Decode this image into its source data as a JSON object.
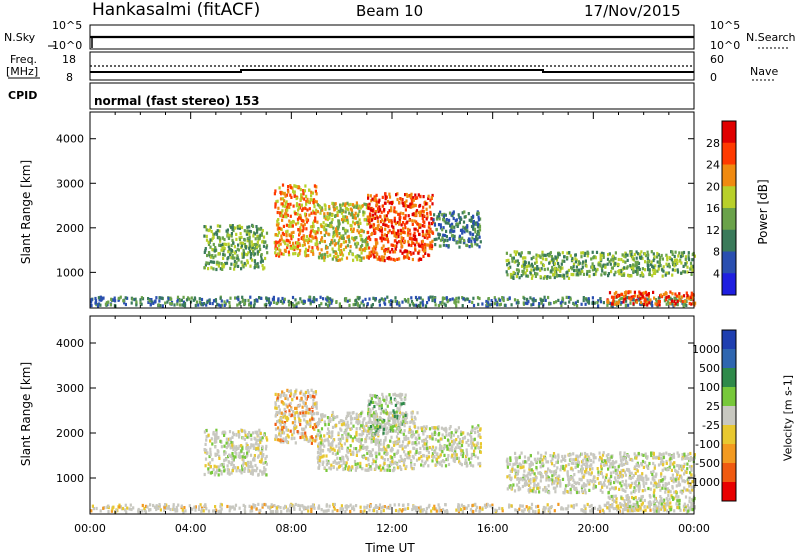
{
  "header": {
    "station": "Hankasalmi (fitACF)",
    "beam": "Beam 10",
    "date": "17/Nov/2015"
  },
  "params": {
    "nsky_label": "N.Sky",
    "nsearch_label": "N.Search",
    "nsky_top": "10^5",
    "nsky_bottom": "10^0",
    "nsearch_top": "10^5",
    "nsearch_bottom": "10^0",
    "freq_label": "Freq.",
    "freq_unit": "[MHz]",
    "freq_top": "18",
    "freq_bottom": "8",
    "nave_label": "Nave",
    "nave_top": "60",
    "nave_bottom": "0",
    "cpid_label": "CPID",
    "cpid_value": "normal (fast stereo) 153"
  },
  "colors": {
    "power": [
      "#1f1fe0",
      "#2a4fb0",
      "#3a7a5a",
      "#6aa24a",
      "#b8d02a",
      "#f08a10",
      "#ff3a00",
      "#e00000"
    ],
    "velocity": [
      "#1f3fb0",
      "#2f66b0",
      "#2f8a4a",
      "#77c83a",
      "#c8c8c0",
      "#e8c830",
      "#f39a20",
      "#f05a10",
      "#e80000"
    ],
    "scatter_gray": "#c8c8c0"
  },
  "chart_data": [
    {
      "type": "heatmap",
      "panel": "power",
      "ylabel": "Slant Range [km]",
      "ylim": [
        200,
        4600
      ],
      "y_ticks": [
        "1000",
        "2000",
        "3000",
        "4000"
      ],
      "xlim": [
        0,
        24
      ],
      "colorbar_label": "Power [dB]",
      "colorbar_ticks": [
        "4",
        "8",
        "12",
        "16",
        "20",
        "24",
        "28"
      ],
      "regions": [
        {
          "t0": 0.0,
          "t1": 24.0,
          "r0": 280,
          "r1": 480,
          "level": 2
        },
        {
          "t0": 4.5,
          "t1": 7.0,
          "r0": 1100,
          "r1": 2100,
          "level": 3
        },
        {
          "t0": 7.3,
          "t1": 9.0,
          "r0": 1400,
          "r1": 3000,
          "level": 5
        },
        {
          "t0": 9.0,
          "t1": 11.0,
          "r0": 1300,
          "r1": 2600,
          "level": 4
        },
        {
          "t0": 11.0,
          "t1": 13.6,
          "r0": 1300,
          "r1": 2800,
          "level": 6
        },
        {
          "t0": 13.6,
          "t1": 15.5,
          "r0": 1600,
          "r1": 2400,
          "level": 2
        },
        {
          "t0": 16.5,
          "t1": 19.0,
          "r0": 900,
          "r1": 1500,
          "level": 3
        },
        {
          "t0": 19.0,
          "t1": 24.0,
          "r0": 950,
          "r1": 1500,
          "level": 3
        },
        {
          "t0": 20.5,
          "t1": 24.0,
          "r0": 300,
          "r1": 600,
          "level": 6
        }
      ]
    },
    {
      "type": "heatmap",
      "panel": "velocity",
      "ylabel": "Slant Range [km]",
      "ylim": [
        200,
        4600
      ],
      "y_ticks": [
        "1000",
        "2000",
        "3000",
        "4000"
      ],
      "xlim": [
        0,
        24
      ],
      "xlabel": "Time UT",
      "x_ticks": [
        "00:00",
        "04:00",
        "08:00",
        "12:00",
        "16:00",
        "20:00",
        "00:00"
      ],
      "colorbar_label": "Velocity [m s-1]",
      "colorbar_ticks": [
        "1000",
        "500",
        "100",
        "25",
        "-25",
        "-100",
        "-500",
        "-1000"
      ],
      "regions": [
        {
          "t0": 0.0,
          "t1": 24.0,
          "r0": 280,
          "r1": 450,
          "level": 5
        },
        {
          "t0": 4.5,
          "t1": 7.0,
          "r0": 1100,
          "r1": 2100,
          "level": 4
        },
        {
          "t0": 7.3,
          "t1": 9.0,
          "r0": 1800,
          "r1": 3000,
          "level": 6
        },
        {
          "t0": 9.0,
          "t1": 13.0,
          "r0": 1200,
          "r1": 2500,
          "level": 4
        },
        {
          "t0": 11.0,
          "t1": 12.5,
          "r0": 2000,
          "r1": 2900,
          "level": 3
        },
        {
          "t0": 13.0,
          "t1": 15.5,
          "r0": 1300,
          "r1": 2200,
          "level": 4
        },
        {
          "t0": 16.5,
          "t1": 24.0,
          "r0": 700,
          "r1": 1600,
          "level": 4
        },
        {
          "t0": 20.5,
          "t1": 24.0,
          "r0": 280,
          "r1": 650,
          "level": 4
        }
      ]
    }
  ]
}
